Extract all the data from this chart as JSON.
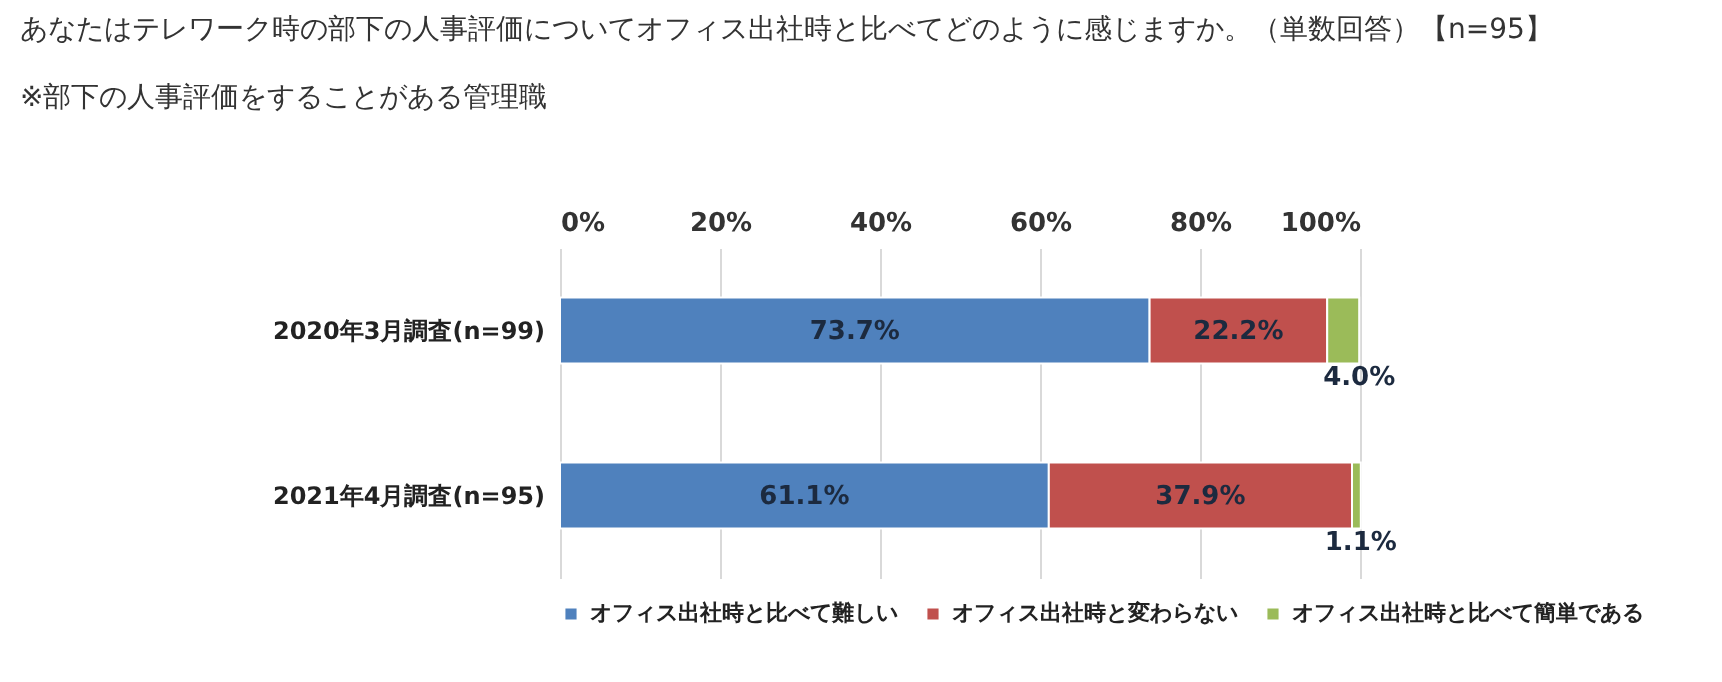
{
  "chart_data": {
    "type": "bar",
    "orientation": "horizontal",
    "stacked": true,
    "title": "あなたはテレワーク時の部下の人事評価についてオフィス出社時と比べてどのように感じますか。（単数回答）【n=95】",
    "subtitle": "※部下の人事評価をすることがある管理職",
    "categories": [
      "2020年3月調査(n=99)",
      "2021年4月調査(n=95)"
    ],
    "series": [
      {
        "name": "オフィス出社時と比べて難しい",
        "color": "#4f81bd",
        "values": [
          73.7,
          61.1
        ],
        "value_labels": [
          "73.7%",
          "61.1%"
        ]
      },
      {
        "name": "オフィス出社時と変わらない",
        "color": "#c0504d",
        "values": [
          22.2,
          37.9
        ],
        "value_labels": [
          "22.2%",
          "37.9%"
        ]
      },
      {
        "name": "オフィス出社時と比べて簡単である",
        "color": "#9bbb59",
        "values": [
          4.0,
          1.1
        ],
        "value_labels": [
          "4.0%",
          "1.1%"
        ]
      }
    ],
    "xlim": [
      0,
      100
    ],
    "xticks": [
      {
        "value": 0,
        "label": "0%"
      },
      {
        "value": 20,
        "label": "20%"
      },
      {
        "value": 40,
        "label": "40%"
      },
      {
        "value": 60,
        "label": "60%"
      },
      {
        "value": 80,
        "label": "80%"
      },
      {
        "value": 100,
        "label": "100%"
      }
    ],
    "grid": "x",
    "legend": "bottom"
  }
}
